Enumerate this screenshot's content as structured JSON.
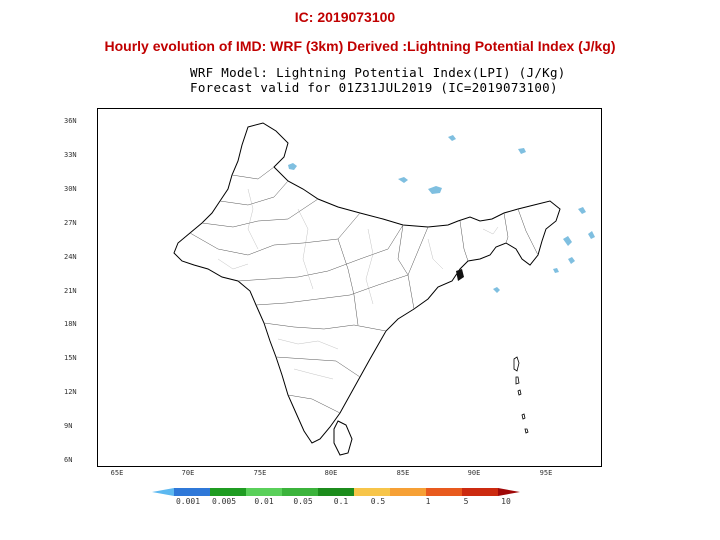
{
  "header": {
    "ic_title": "IC: 2019073100",
    "subtitle": "Hourly evolution of IMD: WRF (3km) Derived :Lightning Potential Index (J/kg)"
  },
  "plot": {
    "model_line1": "WRF Model: Lightning Potential Index(LPI) (J/Kg)",
    "model_line2": "Forecast valid for 01Z31JUL2019 (IC=2019073100)"
  },
  "axes": {
    "lat_labels": [
      "36N",
      "33N",
      "30N",
      "27N",
      "24N",
      "21N",
      "18N",
      "15N",
      "12N",
      "9N",
      "6N"
    ],
    "lon_labels": [
      "65E",
      "70E",
      "75E",
      "80E",
      "85E",
      "90E",
      "95E"
    ]
  },
  "legend": {
    "labels": [
      "0.001",
      "0.005",
      "0.01",
      "0.05",
      "0.1",
      "0.5",
      "1",
      "5",
      "10"
    ],
    "colors": [
      "#5cb8f0",
      "#2f78d8",
      "#1f9c22",
      "#5ad05a",
      "#3bb33b",
      "#1c8c1c",
      "#f7c54a",
      "#f6a035",
      "#e85a1e",
      "#cc2a10",
      "#a00808"
    ]
  },
  "map": {
    "land_fill": "#ffffff",
    "border_color": "#000000",
    "lpi_color": "#7fbfe0"
  }
}
